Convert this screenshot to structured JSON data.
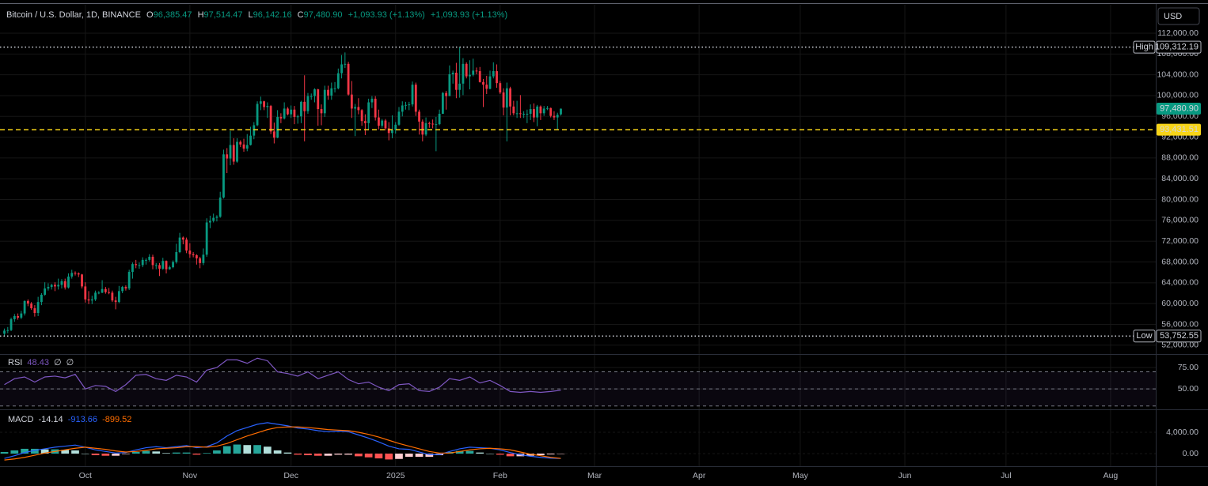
{
  "chart_data": [
    {
      "type": "candlestick",
      "title": "Bitcoin / U.S. Dollar, 1D, BINANCE",
      "header": [
        {
          "name": "O",
          "value": "96,385.47"
        },
        {
          "name": "H",
          "value": "97,514.47"
        },
        {
          "name": "L",
          "value": "96,142.16"
        },
        {
          "name": "C",
          "value": "97,480.90"
        }
      ],
      "change": [
        "+1,093.93 (+1.13%)",
        "+1,093.93 (+1.13%)"
      ],
      "currency": "USD",
      "up_color": "#089981",
      "down_color": "#f23645",
      "open": [
        54200,
        54800,
        54900,
        57000,
        57600,
        57300,
        58100,
        60500,
        60000,
        59100,
        58200,
        60300,
        61700,
        62900,
        63200,
        63600,
        63300,
        63600,
        64300,
        63100,
        65200,
        65900,
        65800,
        65600,
        63300,
        60800,
        60600,
        60800,
        62100,
        62100,
        62800,
        62200,
        62100,
        60600,
        60300,
        62400,
        63200,
        62900,
        66100,
        67600,
        67400,
        67400,
        68400,
        68400,
        69000,
        67400,
        67400,
        66700,
        68200,
        66600,
        67000,
        68000,
        69900,
        72700,
        72300,
        70200,
        69500,
        69300,
        68700,
        67800,
        69400,
        75600,
        75900,
        76500,
        76700,
        80400,
        88700,
        87900,
        90500,
        87300,
        91100,
        90600,
        89800,
        90500,
        92300,
        94300,
        98400,
        98900,
        97800,
        98000,
        93100,
        91900,
        95900,
        95600,
        97500,
        96400,
        97300,
        95900,
        96000,
        98800,
        97000,
        99900,
        99900,
        101200,
        97400,
        96600,
        101100,
        100000,
        101400,
        101400,
        104300,
        106000,
        106100,
        100200,
        97500,
        97800,
        97200,
        95100,
        94700,
        98700,
        99400,
        95800,
        94200,
        95200,
        93700,
        92800,
        93400,
        94400,
        96900,
        98100,
        98200,
        98300,
        102100,
        96900,
        95000,
        92500,
        94700,
        94600,
        94500,
        94500,
        96500,
        100500,
        99900,
        104100,
        104400,
        101100,
        102300,
        106100,
        103700,
        104000,
        104800,
        104700,
        102600,
        102100,
        101300,
        103700,
        104700,
        102400,
        100600,
        97700,
        101400,
        97900,
        96600,
        96600,
        96500,
        96500,
        96500,
        97400,
        95800,
        97900,
        96600,
        97500,
        97600,
        96100,
        95800,
        96385.47
      ],
      "high": [
        55200,
        55500,
        57300,
        58000,
        58100,
        58600,
        60600,
        60800,
        60300,
        59700,
        61300,
        62000,
        64100,
        63900,
        63800,
        64100,
        64800,
        64700,
        64800,
        65800,
        66500,
        66200,
        66000,
        65700,
        64100,
        62400,
        61500,
        62500,
        62400,
        64500,
        63200,
        63000,
        62500,
        61300,
        63400,
        63400,
        63500,
        66500,
        67900,
        68400,
        67900,
        68900,
        68700,
        69500,
        69400,
        67800,
        67800,
        68800,
        68300,
        67300,
        68300,
        71500,
        73600,
        72900,
        72700,
        71600,
        69900,
        69500,
        69000,
        70600,
        76400,
        76900,
        77300,
        77000,
        81500,
        89600,
        89900,
        93200,
        91800,
        91800,
        91400,
        91700,
        92600,
        94000,
        94900,
        98900,
        99800,
        99000,
        98700,
        98200,
        94800,
        97200,
        96600,
        98700,
        97800,
        98100,
        98000,
        96300,
        99000,
        103900,
        100500,
        100400,
        101400,
        101300,
        98300,
        101900,
        101900,
        102500,
        102600,
        105200,
        107800,
        108300,
        106500,
        102800,
        98400,
        99500,
        97400,
        96400,
        99400,
        99900,
        99900,
        97300,
        95500,
        95500,
        94900,
        96200,
        94900,
        97800,
        98900,
        98800,
        98800,
        102700,
        102500,
        97300,
        95400,
        95800,
        95000,
        95400,
        95900,
        97300,
        100700,
        100900,
        105800,
        104800,
        106300,
        109312.19,
        107200,
        106400,
        106800,
        107100,
        105400,
        105500,
        103200,
        103800,
        104800,
        106400,
        106000,
        102800,
        101400,
        102500,
        101700,
        99000,
        99000,
        100100,
        97000,
        97300,
        98300,
        98500,
        98200,
        98100,
        98000,
        98000,
        97700,
        97000,
        96700,
        97514.47
      ],
      "low": [
        53752.55,
        54300,
        54700,
        56500,
        56900,
        57000,
        57700,
        59500,
        58800,
        57500,
        57600,
        59700,
        61500,
        62500,
        62700,
        62400,
        62700,
        62900,
        62700,
        62900,
        64800,
        65400,
        65100,
        62900,
        60200,
        59900,
        59900,
        60500,
        61800,
        62000,
        61900,
        61800,
        60300,
        58900,
        60100,
        62000,
        62500,
        62600,
        64800,
        66800,
        66700,
        67000,
        67500,
        68100,
        66600,
        66600,
        65300,
        66500,
        65800,
        66500,
        66800,
        67700,
        69700,
        71400,
        69700,
        68800,
        68900,
        67500,
        66800,
        67400,
        69000,
        74500,
        75600,
        75800,
        76500,
        80200,
        85100,
        86600,
        86700,
        87100,
        90100,
        89200,
        89300,
        90400,
        91600,
        94100,
        97200,
        97200,
        95700,
        92600,
        90800,
        91800,
        94700,
        95400,
        96200,
        95700,
        94500,
        94600,
        94700,
        91200,
        96500,
        99200,
        98700,
        94200,
        94300,
        95900,
        99200,
        99200,
        100600,
        101200,
        103300,
        105300,
        100000,
        95700,
        92200,
        96400,
        94200,
        92400,
        93400,
        97600,
        95200,
        93500,
        93800,
        93300,
        91400,
        91800,
        92700,
        94200,
        96000,
        97300,
        97200,
        97900,
        96100,
        92500,
        91200,
        92200,
        93800,
        93700,
        89300,
        94300,
        96500,
        97300,
        99900,
        102300,
        99500,
        99600,
        100100,
        103300,
        101200,
        103700,
        104100,
        102500,
        97800,
        100300,
        101200,
        103300,
        101500,
        100300,
        96200,
        91200,
        96200,
        96200,
        95700,
        95700,
        95700,
        94700,
        95300,
        94900,
        94100,
        95300,
        96100,
        97200,
        95800,
        95300,
        93400,
        96142.16
      ],
      "close": [
        54800,
        54900,
        57000,
        57600,
        57300,
        58100,
        60500,
        60000,
        59100,
        58200,
        60300,
        61700,
        62900,
        63200,
        63600,
        63300,
        63600,
        64300,
        63100,
        65200,
        65900,
        65800,
        65600,
        63300,
        60800,
        60600,
        60800,
        62100,
        62100,
        62800,
        62200,
        62100,
        60600,
        60300,
        62400,
        63200,
        62900,
        66100,
        67600,
        67400,
        67400,
        68400,
        68400,
        69000,
        67400,
        67400,
        66700,
        68200,
        66600,
        67000,
        68000,
        69900,
        72700,
        72300,
        70200,
        69500,
        69300,
        68700,
        67800,
        69400,
        75600,
        75900,
        76500,
        76700,
        80400,
        88700,
        87900,
        90500,
        87300,
        91100,
        90600,
        89800,
        90500,
        92300,
        94300,
        98400,
        98900,
        97800,
        98000,
        93100,
        91900,
        95900,
        95600,
        97500,
        96400,
        97300,
        95900,
        96000,
        98800,
        97000,
        99900,
        99900,
        101200,
        97400,
        96600,
        101100,
        100000,
        101400,
        101400,
        104300,
        106000,
        106100,
        100200,
        97500,
        97800,
        97200,
        95100,
        94700,
        98700,
        99400,
        95800,
        94200,
        95200,
        93700,
        92800,
        93400,
        94400,
        96900,
        98100,
        98200,
        98300,
        102100,
        96900,
        95000,
        92500,
        94700,
        94600,
        94500,
        94500,
        96500,
        100500,
        99900,
        104100,
        104400,
        101100,
        102300,
        106100,
        103700,
        104000,
        104800,
        104700,
        102600,
        102100,
        101300,
        103700,
        104700,
        102400,
        100600,
        97700,
        101400,
        97900,
        96600,
        96600,
        96500,
        96500,
        96500,
        97400,
        95800,
        97900,
        96600,
        97500,
        97600,
        96100,
        95800,
        96300,
        97480.9
      ],
      "xlim": [
        -1.3,
        341.4
      ],
      "xticks": [
        {
          "value": 24,
          "label": "Oct"
        },
        {
          "value": 55,
          "label": "Nov"
        },
        {
          "value": 85,
          "label": "Dec"
        },
        {
          "value": 116,
          "label": "2025"
        },
        {
          "value": 147,
          "label": "Feb"
        },
        {
          "value": 175,
          "label": "Mar"
        },
        {
          "value": 206,
          "label": "Apr"
        },
        {
          "value": 236,
          "label": "May"
        },
        {
          "value": 267,
          "label": "Jun"
        },
        {
          "value": 297,
          "label": "Jul"
        },
        {
          "value": 328,
          "label": "Aug"
        }
      ],
      "ylim": [
        50450,
        117470
      ],
      "yticks": [
        {
          "value": 112000,
          "label": "112,000.00"
        },
        {
          "value": 108000,
          "label": "108,000.00"
        },
        {
          "value": 104000,
          "label": "104,000.00"
        },
        {
          "value": 100000,
          "label": "100,000.00"
        },
        {
          "value": 96000,
          "label": "96,000.00"
        },
        {
          "value": 92000,
          "label": "92,000.00"
        },
        {
          "value": 88000,
          "label": "88,000.00"
        },
        {
          "value": 84000,
          "label": "84,000.00"
        },
        {
          "value": 80000,
          "label": "80,000.00"
        },
        {
          "value": 76000,
          "label": "76,000.00"
        },
        {
          "value": 72000,
          "label": "72,000.00"
        },
        {
          "value": 68000,
          "label": "68,000.00"
        },
        {
          "value": 64000,
          "label": "64,000.00"
        },
        {
          "value": 60000,
          "label": "60,000.00"
        },
        {
          "value": 56000,
          "label": "56,000.00"
        },
        {
          "value": 52000,
          "label": "52,000.00"
        }
      ],
      "grid": true,
      "high_marker": {
        "label": "High",
        "value": 109312.19,
        "value_label": "109,312.19"
      },
      "low_marker": {
        "label": "Low",
        "value": 53752.55,
        "value_label": "53,752.55"
      },
      "level": {
        "value": 93431.51,
        "label": "93,431.51",
        "color": "#f7d417"
      },
      "last_price": {
        "value": 97480.9,
        "label": "97,480.90",
        "color": "#089981"
      }
    },
    {
      "type": "line",
      "name": "RSI",
      "value_label": "48.43",
      "inputs": [
        "∅",
        "∅"
      ],
      "color": "#7e57c2",
      "x": [
        0,
        3,
        6,
        9,
        12,
        15,
        18,
        21,
        24,
        27,
        30,
        33,
        36,
        39,
        42,
        45,
        48,
        51,
        54,
        57,
        60,
        63,
        66,
        69,
        72,
        75,
        78,
        81,
        84,
        87,
        90,
        93,
        96,
        99,
        102,
        105,
        108,
        111,
        114,
        117,
        120,
        123,
        126,
        129,
        132,
        135,
        138,
        141,
        144,
        147,
        150,
        153,
        156,
        159,
        162,
        165
      ],
      "values": [
        55,
        62,
        64,
        58,
        64,
        65,
        63,
        67,
        50,
        54,
        53,
        47,
        55,
        66,
        67,
        62,
        60,
        66,
        64,
        58,
        72,
        75,
        84,
        84,
        80,
        86,
        83,
        70,
        68,
        65,
        70,
        62,
        66,
        70,
        61,
        56,
        58,
        52,
        48,
        55,
        56,
        48,
        47,
        52,
        62,
        60,
        64,
        57,
        60,
        54,
        47,
        46,
        47,
        46,
        47,
        48.43
      ],
      "bands": [
        70,
        50,
        30
      ],
      "ylim": [
        27,
        89
      ],
      "yticks": [
        {
          "value": 75,
          "label": "75.00"
        },
        {
          "value": 50,
          "label": "50.00"
        }
      ],
      "grid": true
    },
    {
      "type": "macd",
      "name": "MACD",
      "value_labels": [
        "-14.14",
        "-913.66",
        "-899.52"
      ],
      "x": [
        0,
        3,
        6,
        9,
        12,
        15,
        18,
        21,
        24,
        27,
        30,
        33,
        36,
        39,
        42,
        45,
        48,
        51,
        54,
        57,
        60,
        63,
        66,
        69,
        72,
        75,
        78,
        81,
        84,
        87,
        90,
        93,
        96,
        99,
        102,
        105,
        108,
        111,
        114,
        117,
        120,
        123,
        126,
        129,
        132,
        135,
        138,
        141,
        144,
        147,
        150,
        153,
        156,
        159,
        162,
        165
      ],
      "histogram": [
        300,
        600,
        900,
        900,
        800,
        800,
        700,
        600,
        0,
        -300,
        -400,
        -400,
        -100,
        300,
        500,
        400,
        100,
        200,
        200,
        -200,
        100,
        600,
        1400,
        1700,
        1600,
        1600,
        1300,
        600,
        200,
        -200,
        -300,
        -400,
        -400,
        -200,
        -200,
        -500,
        -700,
        -900,
        -1100,
        -1000,
        -600,
        -600,
        -600,
        -300,
        300,
        500,
        500,
        200,
        0,
        -200,
        -500,
        -500,
        -400,
        -300,
        -150,
        -14.14
      ],
      "macd": [
        -900,
        -400,
        200,
        600,
        900,
        1200,
        1400,
        1600,
        1200,
        700,
        400,
        100,
        200,
        700,
        1100,
        1300,
        1100,
        1300,
        1500,
        1100,
        1300,
        2000,
        3300,
        4300,
        4900,
        5500,
        5800,
        5500,
        5200,
        4800,
        4600,
        4300,
        4100,
        4200,
        4100,
        3500,
        2900,
        2200,
        1400,
        900,
        800,
        300,
        -200,
        -200,
        400,
        900,
        1200,
        1100,
        1000,
        700,
        200,
        -200,
        -500,
        -700,
        -850,
        -913.66
      ],
      "signal": [
        -1200,
        -1000,
        -700,
        -300,
        100,
        400,
        700,
        1000,
        1200,
        1000,
        800,
        500,
        300,
        400,
        600,
        900,
        1000,
        1100,
        1300,
        1300,
        1200,
        1400,
        1900,
        2600,
        3300,
        3900,
        4500,
        4900,
        5000,
        5000,
        4900,
        4700,
        4500,
        4400,
        4300,
        4000,
        3600,
        3100,
        2500,
        1900,
        1400,
        900,
        400,
        100,
        100,
        400,
        700,
        900,
        1000,
        900,
        700,
        300,
        -100,
        -400,
        -700,
        -899.52
      ],
      "histogram_colors": [
        "#26a69a",
        "#b2dfdb",
        "#ff5252",
        "#ffcdd2"
      ],
      "macd_color": "#2962ff",
      "signal_color": "#ff6d00",
      "ylim": [
        -2370,
        8000
      ],
      "yticks": [
        {
          "value": 4000,
          "label": "4,000.00"
        },
        {
          "value": 0,
          "label": "0.00"
        }
      ],
      "grid": true
    }
  ]
}
